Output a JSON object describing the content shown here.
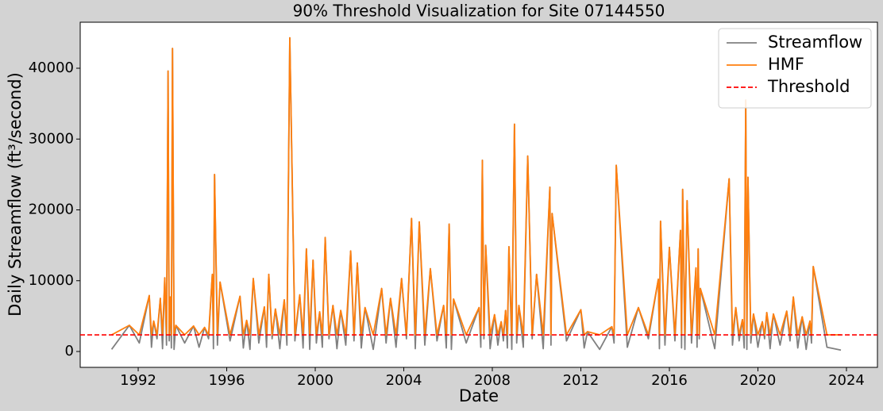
{
  "chart_data": {
    "type": "line",
    "title": "90% Threshold Visualization for Site 07144550",
    "x_label": "Date",
    "y_label": "Daily Streamflow (ft³/second)",
    "x": [
      1990.8,
      1991.6,
      1992.05,
      1992.5,
      1992.6,
      1992.7,
      1992.85,
      1993.0,
      1993.1,
      1993.2,
      1993.28,
      1993.35,
      1993.4,
      1993.45,
      1993.5,
      1993.55,
      1993.62,
      1993.7,
      1994.1,
      1994.5,
      1994.75,
      1995.0,
      1995.18,
      1995.35,
      1995.4,
      1995.45,
      1995.58,
      1995.7,
      1996.15,
      1996.6,
      1996.75,
      1996.9,
      1997.05,
      1997.2,
      1997.45,
      1997.7,
      1997.8,
      1997.9,
      1998.05,
      1998.2,
      1998.4,
      1998.6,
      1998.72,
      1998.85,
      1999.08,
      1999.3,
      1999.45,
      1999.6,
      1999.75,
      1999.9,
      2000.05,
      2000.2,
      2000.32,
      2000.45,
      2000.62,
      2000.8,
      2000.98,
      2001.15,
      2001.38,
      2001.6,
      2001.75,
      2001.9,
      2002.08,
      2002.25,
      2002.62,
      2003.0,
      2003.2,
      2003.4,
      2003.65,
      2003.9,
      2004.12,
      2004.35,
      2004.52,
      2004.7,
      2004.95,
      2005.2,
      2005.5,
      2005.8,
      2005.92,
      2006.05,
      2006.15,
      2006.25,
      2006.82,
      2007.4,
      2007.48,
      2007.55,
      2007.62,
      2007.7,
      2007.9,
      2008.1,
      2008.25,
      2008.4,
      2008.5,
      2008.6,
      2008.68,
      2008.75,
      2008.88,
      2009.0,
      2009.1,
      2009.2,
      2009.4,
      2009.6,
      2009.8,
      2010.0,
      2010.3,
      2010.6,
      2010.65,
      2010.7,
      2011.35,
      2012.0,
      2012.15,
      2012.3,
      2012.85,
      2013.4,
      2013.5,
      2013.6,
      2014.1,
      2014.6,
      2015.05,
      2015.5,
      2015.55,
      2015.6,
      2015.8,
      2016.0,
      2016.25,
      2016.5,
      2016.55,
      2016.6,
      2016.7,
      2016.8,
      2017.0,
      2017.2,
      2017.25,
      2017.3,
      2017.35,
      2017.4,
      2018.05,
      2018.7,
      2018.85,
      2019.0,
      2019.15,
      2019.3,
      2019.38,
      2019.45,
      2019.5,
      2019.55,
      2019.68,
      2019.8,
      2020.0,
      2020.2,
      2020.3,
      2020.4,
      2020.55,
      2020.7,
      2021.0,
      2021.3,
      2021.45,
      2021.6,
      2021.8,
      2022.0,
      2022.18,
      2022.35,
      2022.42,
      2022.5,
      2023.12,
      2023.75
    ],
    "series": [
      {
        "name": "Streamflow",
        "color": "#808080",
        "values": [
          300,
          3700,
          1200,
          7900,
          600,
          4300,
          1800,
          7500,
          400,
          10400,
          900,
          39600,
          1500,
          7700,
          500,
          42800,
          300,
          3700,
          1200,
          3600,
          600,
          3400,
          1800,
          10900,
          400,
          25000,
          900,
          9800,
          1500,
          7800,
          500,
          4400,
          300,
          10300,
          1200,
          6300,
          600,
          10900,
          1800,
          6000,
          400,
          7300,
          900,
          44300,
          1500,
          8000,
          500,
          14500,
          300,
          12900,
          1200,
          5600,
          600,
          16100,
          1800,
          6500,
          400,
          5800,
          900,
          14200,
          1500,
          12500,
          500,
          6200,
          300,
          8900,
          1200,
          7500,
          600,
          10300,
          1800,
          18800,
          400,
          18300,
          900,
          11700,
          1500,
          6500,
          500,
          18000,
          300,
          7400,
          1200,
          6200,
          600,
          27000,
          1800,
          15000,
          400,
          5200,
          900,
          4200,
          1500,
          5800,
          500,
          14800,
          300,
          32100,
          1200,
          6500,
          600,
          27600,
          1800,
          10900,
          400,
          23200,
          900,
          19500,
          1500,
          5900,
          500,
          2800,
          300,
          3500,
          1200,
          26300,
          600,
          6200,
          1800,
          10200,
          400,
          18400,
          900,
          14700,
          1500,
          17100,
          500,
          22900,
          300,
          21300,
          1200,
          11800,
          600,
          14500,
          1800,
          8900,
          400,
          24400,
          900,
          6200,
          1500,
          4500,
          500,
          35500,
          300,
          24600,
          1200,
          5300,
          600,
          4200,
          1800,
          5500,
          400,
          5300,
          900,
          5700,
          1500,
          7700,
          500,
          4900,
          300,
          4300,
          1200,
          12000,
          600,
          200
        ]
      },
      {
        "name": "HMF",
        "color": "#ff7f0e",
        "values": [
          2350,
          3700,
          2350,
          7900,
          2350,
          4300,
          2350,
          7500,
          2350,
          10400,
          2350,
          39600,
          2350,
          7700,
          2350,
          42800,
          2350,
          3700,
          2350,
          3600,
          2350,
          3400,
          2350,
          10900,
          2350,
          25000,
          2350,
          9800,
          2350,
          7800,
          2350,
          4400,
          2350,
          10300,
          2350,
          6300,
          2350,
          10900,
          2350,
          6000,
          2350,
          7300,
          2350,
          44300,
          2350,
          8000,
          2350,
          14500,
          2350,
          12900,
          2350,
          5600,
          2350,
          16100,
          2350,
          6500,
          2350,
          5800,
          2350,
          14200,
          2350,
          12500,
          2350,
          6200,
          2350,
          8900,
          2350,
          7500,
          2350,
          10300,
          2350,
          18800,
          2350,
          18300,
          2350,
          11700,
          2350,
          6500,
          2350,
          18000,
          2350,
          7400,
          2350,
          6200,
          2350,
          27000,
          2350,
          15000,
          2350,
          5200,
          2350,
          4200,
          2350,
          5800,
          2350,
          14800,
          2350,
          32100,
          2350,
          6500,
          2350,
          27600,
          2350,
          10900,
          2350,
          23200,
          2350,
          19500,
          2350,
          5900,
          2350,
          2800,
          2350,
          3500,
          2350,
          26300,
          2350,
          6200,
          2350,
          10200,
          2350,
          18400,
          2350,
          14700,
          2350,
          17100,
          2350,
          22900,
          2350,
          21300,
          2350,
          11800,
          2350,
          14500,
          2350,
          8900,
          2350,
          24400,
          2350,
          6200,
          2350,
          4500,
          2350,
          35500,
          2350,
          24600,
          2350,
          5300,
          2350,
          4200,
          2350,
          5500,
          2350,
          5300,
          2350,
          5700,
          2350,
          7700,
          2350,
          4900,
          2350,
          4300,
          2350,
          12000,
          2350,
          2350
        ]
      }
    ],
    "threshold": {
      "name": "Threshold",
      "value": 2350,
      "color": "#ff0000",
      "dashed": true
    },
    "xlim": [
      1989.38,
      2025.4
    ],
    "ylim": [
      -2240,
      46500
    ],
    "xticks": [
      1992,
      1996,
      2000,
      2004,
      2008,
      2012,
      2016,
      2020,
      2024
    ],
    "yticks": [
      0,
      10000,
      20000,
      30000,
      40000
    ],
    "legend": "upper right"
  }
}
